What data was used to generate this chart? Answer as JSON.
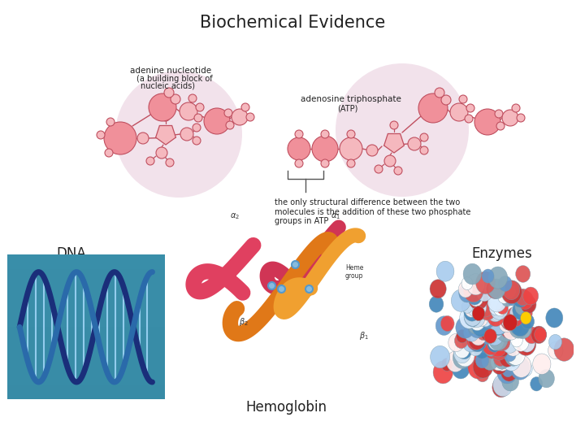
{
  "title": "Biochemical Evidence",
  "title_fontsize": 15,
  "background_color": "#ffffff",
  "label_dna": "DNA",
  "label_hemoglobin": "Hemoglobin",
  "label_enzymes": "Enzymes",
  "label_adenine_line1": "adenine nucleotide",
  "label_adenine_line2": "(a building block of",
  "label_adenine_line3": "nucleic acids)",
  "label_atp_line1": "adenosine triphosphate",
  "label_atp_line2": "(ATP)",
  "label_desc": "the only structural difference between the two\nmolecules is the addition of these two phosphate\ngroups in ATP",
  "pink_fill": "#f0909a",
  "pink_light": "#f5b8be",
  "pink_bg": "#f0dde8",
  "line_color": "#c05060",
  "text_color": "#222222",
  "small_text": 7.5,
  "label_fontsize": 12
}
